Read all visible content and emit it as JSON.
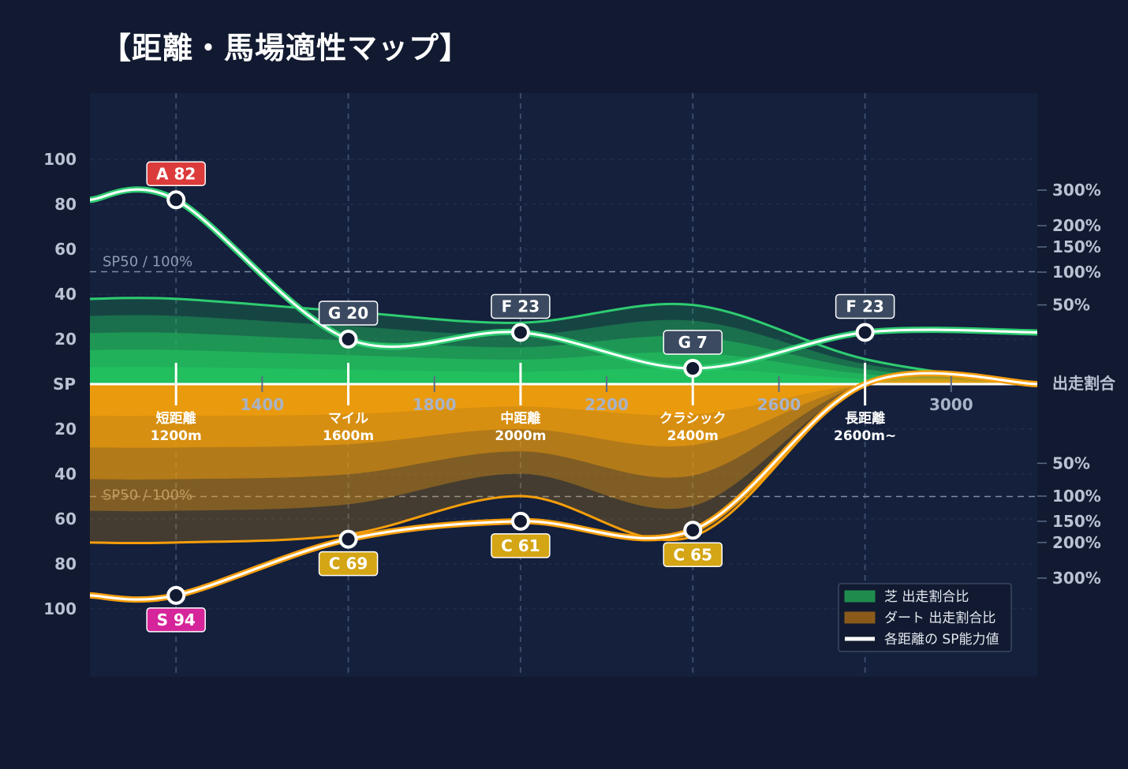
{
  "title": "【距離・馬場適性マップ】",
  "colors": {
    "background": "#111a30",
    "plot_bg": "#14203c",
    "turf": "#22c55e",
    "turf_line": "#2ecc71",
    "dirt": "#f29e0c",
    "dirt_line": "#f59e0b",
    "sp_line": "#ffffff",
    "badge_A": "#dc3b3b",
    "badge_S": "#d6259a",
    "badge_C": "#d4a514",
    "badge_other": "#3b4a60"
  },
  "chart_data": {
    "type": "area",
    "left_axis": {
      "center_label": "SP",
      "upper_ticks": [
        "100",
        "80",
        "60",
        "40",
        "20"
      ],
      "lower_ticks": [
        "20",
        "40",
        "60",
        "80",
        "100"
      ],
      "ylim": [
        0,
        100
      ]
    },
    "right_axis": {
      "center_label": "出走割合",
      "upper_ticks": [
        "300%",
        "200%",
        "150%",
        "100%",
        "50%"
      ],
      "lower_ticks": [
        "50%",
        "100%",
        "150%",
        "200%",
        "300%"
      ],
      "upper_values": [
        300,
        200,
        150,
        100,
        50
      ],
      "lower_values": [
        50,
        100,
        150,
        200,
        300
      ]
    },
    "x_ticks": [
      "1400",
      "1800",
      "2200",
      "2600",
      "3000"
    ],
    "x_tick_values": [
      1400,
      1800,
      2200,
      2600,
      3000
    ],
    "xlim": [
      1000,
      3200
    ],
    "reference_label_top": "SP50 / 100%",
    "reference_label_bottom": "SP50 / 100%",
    "categories": [
      {
        "name": "短距離",
        "dist": "1200m",
        "x": 1200
      },
      {
        "name": "マイル",
        "dist": "1600m",
        "x": 1600
      },
      {
        "name": "中距離",
        "dist": "2000m",
        "x": 2000
      },
      {
        "name": "クラシック",
        "dist": "2400m",
        "x": 2400
      },
      {
        "name": "長距離",
        "dist": "2600m~",
        "x": 2800
      }
    ],
    "turf_sp": [
      {
        "grade": "A",
        "value": 82
      },
      {
        "grade": "G",
        "value": 20
      },
      {
        "grade": "F",
        "value": 23
      },
      {
        "grade": "G",
        "value": 7
      },
      {
        "grade": "F",
        "value": 23
      }
    ],
    "dirt_sp": [
      {
        "grade": "S",
        "value": 94
      },
      {
        "grade": "C",
        "value": 69
      },
      {
        "grade": "C",
        "value": 61
      },
      {
        "grade": "C",
        "value": 65
      },
      null
    ],
    "turf_ratio_percent": [
      58,
      42,
      30,
      50,
      5
    ],
    "dirt_ratio_percent": [
      200,
      180,
      100,
      185,
      0
    ],
    "legend": {
      "position": "bottom-right",
      "items": [
        {
          "label": "芝 出走割合比",
          "color": "#1f8c4e"
        },
        {
          "label": "ダート 出走割合比",
          "color": "#8a5a1a"
        },
        {
          "label": "各距離の SP能力値",
          "color": "#ffffff"
        }
      ]
    }
  }
}
